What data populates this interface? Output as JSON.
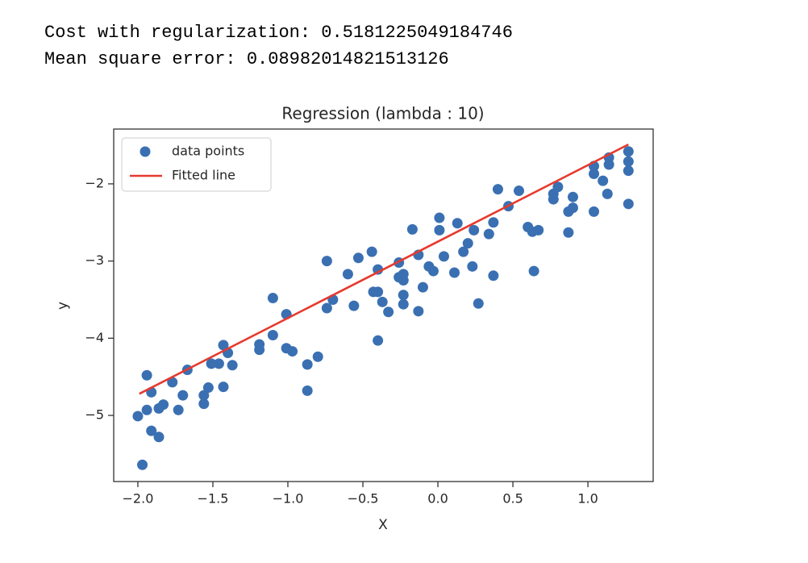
{
  "output": {
    "lines": [
      "Cost with regularization: 0.5181225049184746",
      "Mean square error: 0.08982014821513126"
    ]
  },
  "chart_data": {
    "type": "scatter",
    "title": "Regression (lambda : 10)",
    "x_label": "X",
    "y_label": "y",
    "xlim": [
      -2.161,
      1.435
    ],
    "ylim": [
      -5.857,
      -1.29
    ],
    "xticks": [
      {
        "value": -2,
        "label": "−2.0"
      },
      {
        "value": -1.5,
        "label": "−1.5"
      },
      {
        "value": -1,
        "label": "−1.0"
      },
      {
        "value": -0.5,
        "label": "−0.5"
      },
      {
        "value": 0,
        "label": "0.0"
      },
      0.5,
      {
        "value": 1,
        "label": "1.0"
      }
    ],
    "yticks": [
      {
        "value": -5,
        "label": "−5"
      },
      {
        "value": -4,
        "label": "−4"
      },
      {
        "value": -3,
        "label": "−3"
      },
      {
        "value": -2,
        "label": "−2"
      }
    ],
    "grid": false,
    "legend": "upper left",
    "series": [
      {
        "name": "data points",
        "type": "scatter",
        "color": "#3a70b2",
        "x": [
          -2.0,
          -1.97,
          -1.94,
          -1.94,
          -1.91,
          -1.91,
          -1.86,
          -1.86,
          -1.83,
          -1.77,
          -1.73,
          -1.7,
          -1.67,
          -1.56,
          -1.56,
          -1.53,
          -1.51,
          -1.46,
          -1.43,
          -1.43,
          -1.4,
          -1.37,
          -1.19,
          -1.19,
          -1.1,
          -1.1,
          -1.01,
          -1.01,
          -0.97,
          -0.87,
          -0.87,
          -0.8,
          -0.74,
          -0.74,
          -0.7,
          -0.6,
          -0.56,
          -0.53,
          -0.44,
          -0.43,
          -0.4,
          -0.4,
          -0.4,
          -0.37,
          -0.33,
          -0.26,
          -0.26,
          -0.23,
          -0.23,
          -0.23,
          -0.23,
          -0.17,
          -0.13,
          -0.13,
          -0.1,
          -0.06,
          -0.03,
          0.01,
          0.01,
          0.04,
          0.11,
          0.13,
          0.17,
          0.2,
          0.23,
          0.24,
          0.27,
          0.34,
          0.37,
          0.37,
          0.4,
          0.47,
          0.54,
          0.6,
          0.63,
          0.64,
          0.67,
          0.77,
          0.77,
          0.8,
          0.87,
          0.87,
          0.9,
          0.9,
          1.04,
          1.04,
          1.04,
          1.1,
          1.13,
          1.14,
          1.14,
          1.27,
          1.27,
          1.27,
          1.27
        ],
        "values": [
          -5.01,
          -5.64,
          -4.48,
          -4.93,
          -4.7,
          -5.2,
          -5.28,
          -4.91,
          -4.86,
          -4.57,
          -4.93,
          -4.74,
          -4.41,
          -4.85,
          -4.74,
          -4.64,
          -4.33,
          -4.33,
          -4.63,
          -4.09,
          -4.19,
          -4.35,
          -4.08,
          -4.15,
          -3.48,
          -3.96,
          -3.69,
          -4.13,
          -4.17,
          -4.68,
          -4.34,
          -4.24,
          -3.0,
          -3.61,
          -3.5,
          -3.17,
          -3.58,
          -2.96,
          -2.88,
          -3.4,
          -3.11,
          -3.4,
          -4.03,
          -3.53,
          -3.66,
          -3.02,
          -3.21,
          -3.17,
          -3.25,
          -3.44,
          -3.56,
          -2.59,
          -2.92,
          -3.65,
          -3.34,
          -3.07,
          -3.13,
          -2.44,
          -2.6,
          -2.94,
          -3.15,
          -2.51,
          -2.88,
          -2.77,
          -3.07,
          -2.6,
          -3.55,
          -2.65,
          -2.5,
          -3.19,
          -2.07,
          -2.29,
          -2.09,
          -2.56,
          -2.62,
          -3.13,
          -2.6,
          -2.2,
          -2.13,
          -2.04,
          -2.63,
          -2.36,
          -2.17,
          -2.31,
          -2.36,
          -1.87,
          -1.77,
          -1.96,
          -2.13,
          -1.75,
          -1.66,
          -2.26,
          -1.83,
          -1.71,
          -1.58
        ]
      },
      {
        "name": "Fitted line",
        "type": "line",
        "color": "#e63a2e",
        "x": [
          -1.99,
          1.27
        ],
        "values": [
          -4.72,
          -1.49
        ]
      }
    ]
  }
}
